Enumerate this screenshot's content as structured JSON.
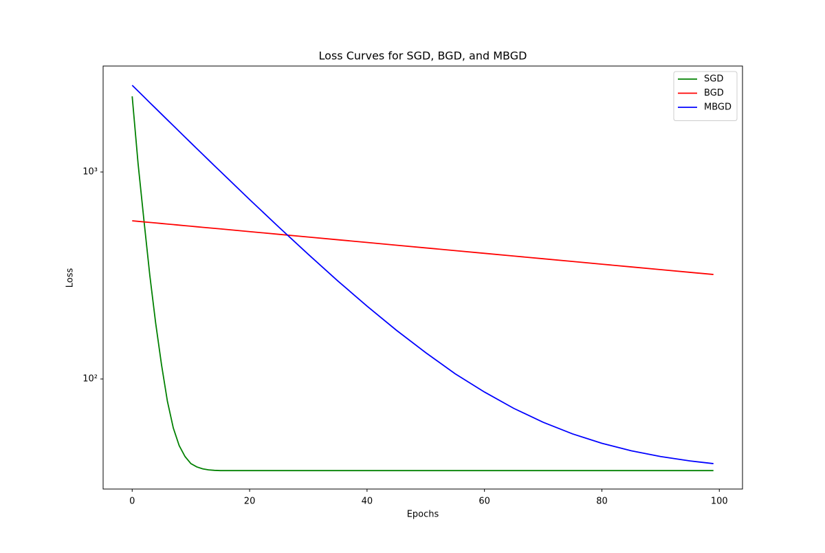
{
  "chart_data": {
    "type": "line",
    "title": "Loss Curves for SGD, BGD, and MBGD",
    "x_label": "Epochs",
    "y_label": "Loss",
    "x": [
      0,
      1,
      2,
      3,
      4,
      5,
      6,
      7,
      8,
      9,
      10,
      11,
      12,
      13,
      14,
      15,
      20,
      25,
      30,
      35,
      40,
      45,
      50,
      55,
      60,
      65,
      70,
      75,
      80,
      85,
      90,
      95,
      99
    ],
    "series": [
      {
        "name": "SGD",
        "color": "#008000",
        "values": [
          2320,
          1100,
          585,
          317,
          186,
          117,
          78,
          58,
          47.7,
          42.2,
          39,
          37.6,
          36.8,
          36.4,
          36.2,
          36.1,
          36.1,
          36.1,
          36.1,
          36.1,
          36.1,
          36.1,
          36.1,
          36.1,
          36.1,
          36.1,
          36.1,
          36.1,
          36.1,
          36.1,
          36.1,
          36.1,
          36.1
        ]
      },
      {
        "name": "BGD",
        "color": "#ff0000",
        "values": [
          581,
          577.5,
          574,
          570.6,
          567.2,
          563.8,
          560.4,
          557,
          553.7,
          550.4,
          547.1,
          543.8,
          540.5,
          537.3,
          534.1,
          531,
          515.2,
          499.9,
          485,
          470.6,
          456.6,
          443,
          429.8,
          417.1,
          404.6,
          392.6,
          380.9,
          369.6,
          358.6,
          347.9,
          337.6,
          327.5,
          319.8
        ]
      },
      {
        "name": "MBGD",
        "color": "#0000ff",
        "values": [
          2624,
          2460,
          2307,
          2163,
          2029,
          1903,
          1785,
          1675,
          1571,
          1474,
          1383,
          1298,
          1218,
          1143,
          1073,
          1008,
          736,
          541,
          400,
          298,
          225,
          172,
          134,
          106,
          86.5,
          72.1,
          61.8,
          54.3,
          48.9,
          45,
          42.2,
          40.2,
          39
        ]
      }
    ],
    "xlim": [
      -4.95,
      103.95
    ],
    "xticks": [
      0,
      20,
      40,
      60,
      80,
      100
    ],
    "ylim": [
      29.4,
      3250
    ],
    "yscale": "log",
    "yticks": [
      {
        "value": 100,
        "label": "10²"
      },
      {
        "value": 1000,
        "label": "10³"
      }
    ],
    "legend": "upper right"
  }
}
